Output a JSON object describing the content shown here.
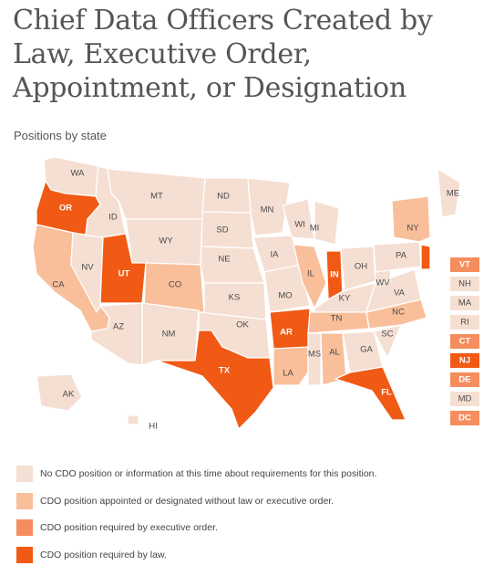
{
  "title": "Chief Data Officers Created by Law, Executive Order, Appointment, or Designation",
  "subtitle": "Positions by state",
  "colors": {
    "none": "#f5dfd2",
    "appointed": "#f9be9a",
    "executive": "#f68d5e",
    "law": "#f05a14"
  },
  "legend": [
    {
      "key": "none",
      "label": "No CDO position or information at this time about requirements for this position."
    },
    {
      "key": "appointed",
      "label": "CDO position appointed or designated without law or executive order."
    },
    {
      "key": "executive",
      "label": "CDO position required by executive order."
    },
    {
      "key": "law",
      "label": "CDO position required by law."
    }
  ],
  "states": {
    "WA": "none",
    "OR": "law",
    "CA": "appointed",
    "NV": "none",
    "ID": "none",
    "MT": "none",
    "WY": "none",
    "UT": "law",
    "CO": "appointed",
    "AZ": "none",
    "NM": "none",
    "ND": "none",
    "SD": "none",
    "NE": "none",
    "KS": "none",
    "OK": "none",
    "TX": "law",
    "MN": "none",
    "IA": "none",
    "MO": "none",
    "AR": "law",
    "LA": "appointed",
    "WI": "none",
    "IL": "appointed",
    "MI": "none",
    "IN": "law",
    "OH": "none",
    "KY": "none",
    "TN": "appointed",
    "MS": "none",
    "AL": "appointed",
    "GA": "none",
    "FL": "law",
    "SC": "none",
    "NC": "appointed",
    "VA": "none",
    "WV": "none",
    "PA": "none",
    "NY": "appointed",
    "ME": "none",
    "AK": "none",
    "HI": "none",
    "VT": "executive",
    "NH": "none",
    "MA": "none",
    "RI": "none",
    "CT": "executive",
    "NJ": "law",
    "DE": "executive",
    "MD": "none",
    "DC": "executive"
  },
  "small_states": [
    "VT",
    "NH",
    "MA",
    "RI",
    "CT",
    "NJ",
    "DE",
    "MD",
    "DC"
  ]
}
